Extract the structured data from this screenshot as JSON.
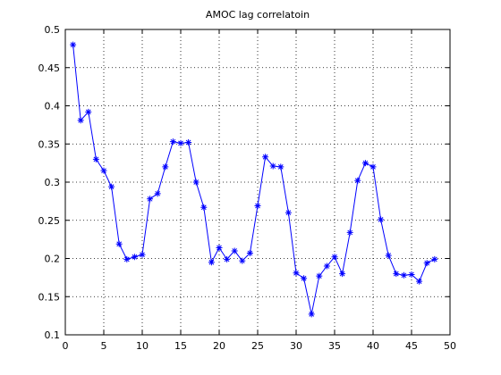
{
  "chart_data": {
    "type": "line",
    "title": "AMOC lag correlatoin",
    "x": [
      1,
      2,
      3,
      4,
      5,
      6,
      7,
      8,
      9,
      10,
      11,
      12,
      13,
      14,
      15,
      16,
      17,
      18,
      19,
      20,
      21,
      22,
      23,
      24,
      25,
      26,
      27,
      28,
      29,
      30,
      31,
      32,
      33,
      34,
      35,
      36,
      37,
      38,
      39,
      40,
      41,
      42,
      43,
      44,
      45,
      46,
      47,
      48
    ],
    "series": [
      {
        "color": "#0000ff",
        "marker": "asterisk",
        "values": [
          0.48,
          0.381,
          0.392,
          0.33,
          0.315,
          0.294,
          0.219,
          0.199,
          0.202,
          0.205,
          0.278,
          0.285,
          0.32,
          0.353,
          0.351,
          0.352,
          0.3,
          0.267,
          0.195,
          0.214,
          0.199,
          0.21,
          0.197,
          0.207,
          0.269,
          0.333,
          0.321,
          0.32,
          0.26,
          0.181,
          0.174,
          0.127,
          0.177,
          0.19,
          0.202,
          0.18,
          0.234,
          0.302,
          0.325,
          0.32,
          0.251,
          0.204,
          0.18,
          0.178,
          0.179,
          0.17,
          0.194,
          0.199
        ]
      }
    ],
    "xlim": [
      0,
      50
    ],
    "xticks": [
      0,
      5,
      10,
      15,
      20,
      25,
      30,
      35,
      40,
      45,
      50
    ],
    "ylim": [
      0.1,
      0.5
    ],
    "yticks": [
      0.1,
      0.15,
      0.2,
      0.25,
      0.3,
      0.35,
      0.4,
      0.45,
      0.5
    ],
    "grid": true
  }
}
